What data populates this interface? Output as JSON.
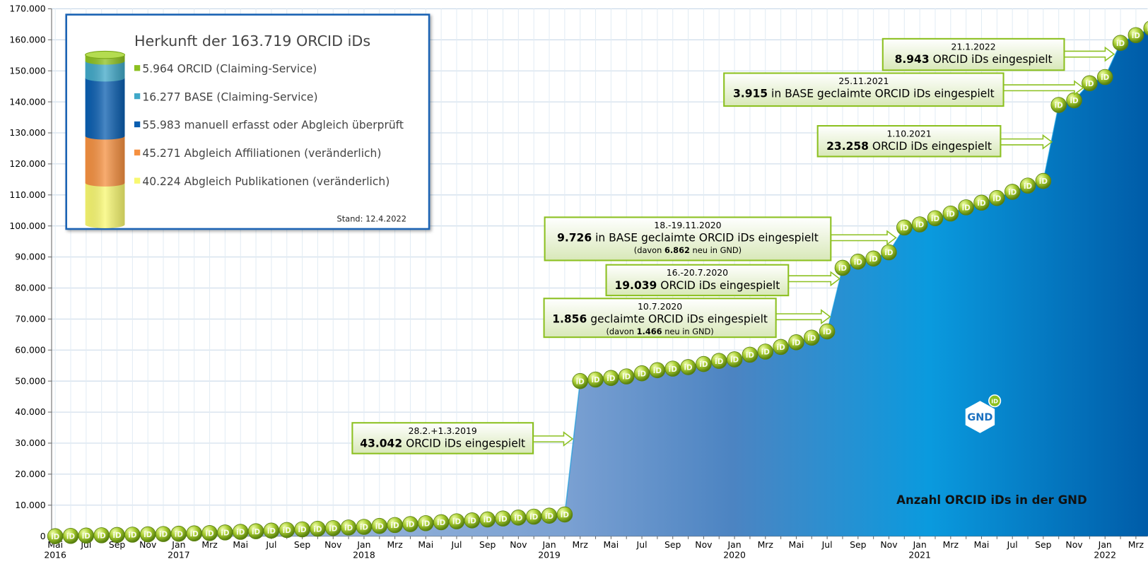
{
  "chart_data": {
    "type": "area",
    "label": "Anzahl ORCID iDs in der GND",
    "marker_label": "iD",
    "logo": {
      "text": "GND",
      "badge": "iD"
    },
    "categories": [
      "Mai",
      null,
      "Jul",
      null,
      "Sep",
      null,
      "Nov",
      null,
      "Jan",
      null,
      "Mrz",
      null,
      "Mai",
      null,
      "Jul",
      null,
      "Sep",
      null,
      "Nov",
      null,
      "Jan",
      null,
      "Mrz",
      null,
      "Mai",
      null,
      "Jul",
      null,
      "Sep",
      null,
      "Nov",
      null,
      "Jan",
      null,
      "Mrz",
      null,
      "Mai",
      null,
      "Jul",
      null,
      "Sep",
      null,
      "Nov",
      null,
      "Jan",
      null,
      "Mrz",
      null,
      "Mai",
      null,
      "Jul",
      null,
      "Sep",
      null,
      "Nov",
      null,
      "Jan",
      null,
      "Mrz",
      null,
      "Mai",
      null,
      "Jul",
      null,
      "Sep",
      null,
      "Nov",
      null,
      "Jan",
      null,
      "Mrz",
      null
    ],
    "category_years": [
      "2016",
      null,
      null,
      null,
      null,
      null,
      null,
      null,
      "2017",
      null,
      null,
      null,
      null,
      null,
      null,
      null,
      null,
      null,
      null,
      null,
      "2018",
      null,
      null,
      null,
      null,
      null,
      null,
      null,
      null,
      null,
      null,
      null,
      "2019",
      null,
      null,
      null,
      null,
      null,
      null,
      null,
      null,
      null,
      null,
      null,
      "2020",
      null,
      null,
      null,
      null,
      null,
      null,
      null,
      null,
      null,
      null,
      null,
      "2021",
      null,
      null,
      null,
      null,
      null,
      null,
      null,
      null,
      null,
      null,
      null,
      "2022",
      null,
      null,
      null
    ],
    "series": [
      {
        "name": "Anzahl ORCID iDs in der GND",
        "color": "#0096dc",
        "values": [
          0,
          100,
          200,
          300,
          400,
          500,
          600,
          700,
          800,
          900,
          1000,
          1200,
          1400,
          1600,
          1800,
          2000,
          2200,
          2400,
          2600,
          2800,
          3000,
          3300,
          3600,
          3900,
          4200,
          4500,
          4800,
          5100,
          5400,
          5700,
          6000,
          6300,
          6600,
          7000,
          50000,
          50500,
          51000,
          51500,
          52500,
          53500,
          54000,
          54500,
          55500,
          56500,
          57000,
          58500,
          59500,
          61000,
          62500,
          64000,
          66000,
          86500,
          88500,
          89500,
          91500,
          99500,
          100500,
          102500,
          104000,
          106000,
          107500,
          109000,
          111000,
          113000,
          114500,
          139000,
          140500,
          146000,
          148000,
          159000,
          161500,
          163719
        ]
      }
    ],
    "ylim": [
      0,
      170000
    ],
    "yticks": [
      0,
      {
        "value": 10000,
        "label": "10.000"
      },
      {
        "value": 20000,
        "label": "20.000"
      },
      {
        "value": 30000,
        "label": "30.000"
      },
      {
        "value": 40000,
        "label": "40.000"
      },
      {
        "value": 50000,
        "label": "50.000"
      },
      {
        "value": 60000,
        "label": "60.000"
      },
      {
        "value": 70000,
        "label": "70.000"
      },
      {
        "value": 80000,
        "label": "80.000"
      },
      {
        "value": 90000,
        "label": "90.000"
      },
      {
        "value": 100000,
        "label": "100.000"
      },
      {
        "value": 110000,
        "label": "110.000"
      },
      {
        "value": 120000,
        "label": "120.000"
      },
      {
        "value": 130000,
        "label": "130.000"
      },
      {
        "value": 140000,
        "label": "140.000"
      },
      {
        "value": 150000,
        "label": "150.000"
      },
      {
        "value": 160000,
        "label": "160.000"
      },
      {
        "value": 170000,
        "label": "170.000"
      }
    ],
    "grid": true,
    "annotations": [
      {
        "date": "28.2.+1.3.2019",
        "value_label": "43.042",
        "text": " ORCID iDs eingespielt"
      },
      {
        "date": "10.7.2020",
        "value_label": "1.856",
        "text": " geclaimte ORCID iDs eingespielt",
        "note": [
          "(davon ",
          "1.466",
          " neu in GND)"
        ]
      },
      {
        "date": "16.-20.7.2020",
        "value_label": "19.039",
        "text": " ORCID iDs eingespielt"
      },
      {
        "date": "18.-19.11.2020",
        "value_label": "9.726",
        "text": " in BASE geclaimte ORCID iDs eingespielt",
        "note": [
          "(davon ",
          "6.862",
          " neu in GND)"
        ]
      },
      {
        "date": "1.10.2021",
        "value_label": "23.258",
        "text": " ORCID iDs eingespielt"
      },
      {
        "date": "25.11.2021",
        "value_label": "3.915",
        "text": " in BASE geclaimte ORCID iDs eingespielt"
      },
      {
        "date": "21.1.2022",
        "value_label": "8.943",
        "text": " ORCID iDs eingespielt"
      }
    ],
    "inset": {
      "title": "Herkunft der 163.719 ORCID iDs",
      "stand": "Stand: 12.4.2022",
      "items": [
        {
          "name": " ORCID (Claiming-Service)",
          "value": 5964,
          "value_label": "5.964",
          "color": "#8cc020"
        },
        {
          "name": " BASE (Claiming-Service)",
          "value": 16277,
          "value_label": "16.277",
          "color": "#40a8c8"
        },
        {
          "name": " manuell erfasst oder Abgleich überprüft",
          "value": 55983,
          "value_label": "55.983",
          "color": "#0a5eb0"
        },
        {
          "name": " Abgleich Affiliationen (veränderlich)",
          "value": 45271,
          "value_label": "45.271",
          "color": "#f59040"
        },
        {
          "name": " Abgleich Publikationen (veränderlich)",
          "value": 40224,
          "value_label": "40.224",
          "color": "#f8f870"
        }
      ]
    }
  }
}
